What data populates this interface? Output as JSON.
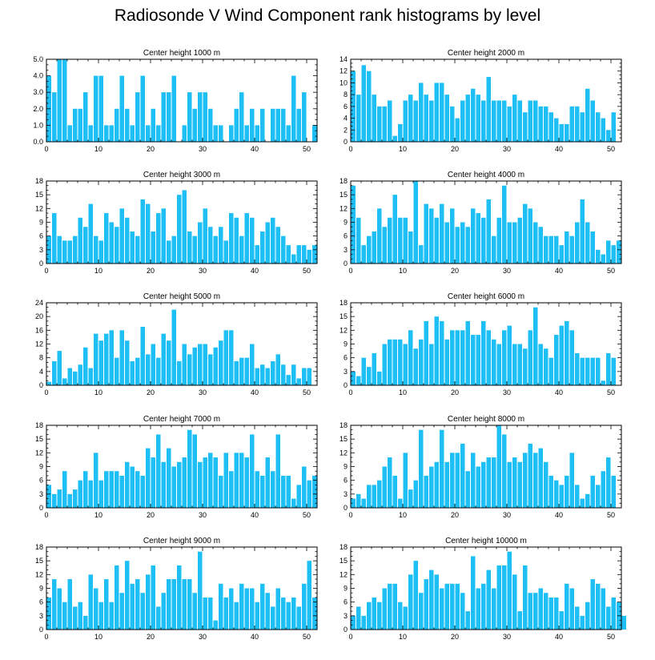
{
  "figure": {
    "title": "Radiosonde V Wind Component rank histograms by level"
  },
  "style": {
    "bar_color": "#1EBFF5",
    "axis_color": "#000000"
  },
  "chart_data": [
    {
      "type": "bar",
      "title": "Center height 1000 m",
      "x_ticks": [
        0,
        10,
        20,
        30,
        40,
        50
      ],
      "xlim": [
        0,
        52
      ],
      "y_ticks": [
        "0.0",
        "1.0",
        "2.0",
        "3.0",
        "4.0",
        "5.0"
      ],
      "ylim": [
        0,
        5
      ],
      "values": [
        4,
        3,
        5,
        5,
        1,
        2,
        2,
        3,
        1,
        4,
        4,
        1,
        1,
        2,
        4,
        2,
        1,
        3,
        4,
        1,
        2,
        1,
        3,
        3,
        4,
        0,
        1,
        3,
        2,
        3,
        3,
        2,
        1,
        1,
        0,
        1,
        2,
        3,
        1,
        2,
        1,
        2,
        0,
        2,
        2,
        2,
        1,
        4,
        2,
        3,
        0,
        1
      ]
    },
    {
      "type": "bar",
      "title": "Center height 2000 m",
      "x_ticks": [
        0,
        10,
        20,
        30,
        40,
        50
      ],
      "xlim": [
        0,
        52
      ],
      "y_ticks": [
        "0",
        "2",
        "4",
        "6",
        "8",
        "10",
        "12",
        "14"
      ],
      "ylim": [
        0,
        14
      ],
      "values": [
        12,
        8,
        13,
        12,
        8,
        6,
        6,
        7,
        1,
        3,
        7,
        8,
        7,
        10,
        8,
        7,
        10,
        10,
        8,
        6,
        4,
        7,
        8,
        9,
        8,
        7,
        11,
        7,
        7,
        7,
        6,
        8,
        7,
        5,
        7,
        7,
        6,
        6,
        5,
        4,
        3,
        3,
        6,
        6,
        5,
        9,
        7,
        5,
        4,
        2,
        5,
        0
      ]
    },
    {
      "type": "bar",
      "title": "Center height 3000 m",
      "x_ticks": [
        0,
        10,
        20,
        30,
        40,
        50
      ],
      "xlim": [
        0,
        52
      ],
      "y_ticks": [
        "0",
        "3",
        "6",
        "9",
        "12",
        "15",
        "18"
      ],
      "ylim": [
        0,
        18
      ],
      "values": [
        6,
        11,
        6,
        5,
        5,
        6,
        10,
        8,
        13,
        6,
        5,
        11,
        9,
        8,
        12,
        10,
        7,
        6,
        14,
        13,
        7,
        11,
        12,
        5,
        6,
        15,
        16,
        7,
        6,
        9,
        12,
        8,
        6,
        8,
        5,
        11,
        10,
        6,
        11,
        10,
        4,
        7,
        9,
        10,
        8,
        6,
        4,
        2,
        4,
        4,
        3,
        4
      ]
    },
    {
      "type": "bar",
      "title": "Center height 4000 m",
      "x_ticks": [
        0,
        10,
        20,
        30,
        40,
        50
      ],
      "xlim": [
        0,
        52
      ],
      "y_ticks": [
        "0",
        "3",
        "6",
        "9",
        "12",
        "15",
        "18"
      ],
      "ylim": [
        0,
        18
      ],
      "values": [
        17,
        10,
        4,
        6,
        7,
        12,
        8,
        10,
        15,
        10,
        10,
        7,
        18,
        4,
        13,
        12,
        10,
        13,
        9,
        12,
        8,
        9,
        8,
        12,
        11,
        10,
        14,
        6,
        10,
        17,
        9,
        9,
        10,
        13,
        12,
        9,
        8,
        6,
        6,
        6,
        4,
        7,
        6,
        9,
        14,
        9,
        7,
        3,
        2,
        5,
        4,
        5
      ]
    },
    {
      "type": "bar",
      "title": "Center height 5000 m",
      "x_ticks": [
        0,
        10,
        20,
        30,
        40,
        50
      ],
      "xlim": [
        0,
        52
      ],
      "y_ticks": [
        "0",
        "4",
        "8",
        "12",
        "16",
        "20",
        "24"
      ],
      "ylim": [
        0,
        24
      ],
      "values": [
        1,
        7,
        10,
        2,
        5,
        4,
        6,
        11,
        5,
        15,
        13,
        15,
        16,
        8,
        16,
        13,
        7,
        8,
        17,
        9,
        12,
        8,
        15,
        13,
        22,
        7,
        12,
        9,
        11,
        12,
        12,
        9,
        11,
        13,
        16,
        16,
        7,
        8,
        8,
        12,
        5,
        6,
        5,
        7,
        9,
        6,
        3,
        6,
        2,
        5,
        5,
        0
      ]
    },
    {
      "type": "bar",
      "title": "Center height 6000 m",
      "x_ticks": [
        0,
        10,
        20,
        30,
        40,
        50
      ],
      "xlim": [
        0,
        52
      ],
      "y_ticks": [
        "0",
        "3",
        "6",
        "9",
        "12",
        "15",
        "18"
      ],
      "ylim": [
        0,
        18
      ],
      "values": [
        3,
        2,
        6,
        4,
        7,
        3,
        9,
        10,
        10,
        10,
        9,
        12,
        8,
        10,
        14,
        9,
        15,
        14,
        10,
        12,
        12,
        12,
        14,
        11,
        11,
        14,
        12,
        10,
        9,
        12,
        13,
        9,
        9,
        8,
        12,
        17,
        9,
        8,
        6,
        11,
        13,
        14,
        12,
        7,
        6,
        6,
        6,
        6,
        1,
        7,
        6,
        0
      ]
    },
    {
      "type": "bar",
      "title": "Center height 7000 m",
      "x_ticks": [
        0,
        10,
        20,
        30,
        40,
        50
      ],
      "xlim": [
        0,
        52
      ],
      "y_ticks": [
        "0",
        "3",
        "6",
        "9",
        "12",
        "15",
        "18"
      ],
      "ylim": [
        0,
        18
      ],
      "values": [
        5,
        3,
        4,
        8,
        3,
        4,
        6,
        8,
        6,
        12,
        6,
        8,
        8,
        8,
        7,
        10,
        9,
        8,
        7,
        13,
        11,
        16,
        10,
        13,
        9,
        10,
        11,
        17,
        16,
        10,
        11,
        12,
        11,
        7,
        12,
        8,
        12,
        12,
        11,
        16,
        8,
        7,
        11,
        8,
        16,
        7,
        7,
        2,
        5,
        9,
        6,
        7
      ]
    },
    {
      "type": "bar",
      "title": "Center height 8000 m",
      "x_ticks": [
        0,
        10,
        20,
        30,
        40,
        50
      ],
      "xlim": [
        0,
        52
      ],
      "y_ticks": [
        "0",
        "3",
        "6",
        "9",
        "12",
        "15",
        "18"
      ],
      "ylim": [
        0,
        18
      ],
      "values": [
        2,
        3,
        2,
        5,
        5,
        6,
        9,
        11,
        7,
        2,
        12,
        4,
        6,
        17,
        7,
        9,
        10,
        17,
        10,
        12,
        12,
        14,
        8,
        12,
        9,
        10,
        11,
        11,
        18,
        16,
        10,
        11,
        10,
        12,
        14,
        12,
        13,
        10,
        7,
        6,
        5,
        7,
        12,
        5,
        2,
        3,
        7,
        5,
        8,
        11,
        7,
        0
      ]
    },
    {
      "type": "bar",
      "title": "Center height 9000 m",
      "x_ticks": [
        0,
        10,
        20,
        30,
        40,
        50
      ],
      "xlim": [
        0,
        52
      ],
      "y_ticks": [
        "0",
        "3",
        "6",
        "9",
        "12",
        "15",
        "18"
      ],
      "ylim": [
        0,
        18
      ],
      "values": [
        7,
        11,
        9,
        6,
        11,
        5,
        6,
        3,
        12,
        9,
        6,
        11,
        6,
        14,
        8,
        15,
        10,
        11,
        8,
        12,
        14,
        5,
        8,
        11,
        11,
        14,
        11,
        11,
        8,
        17,
        7,
        7,
        2,
        10,
        7,
        9,
        6,
        10,
        9,
        9,
        6,
        10,
        8,
        5,
        9,
        7,
        6,
        7,
        5,
        10,
        15,
        7
      ]
    },
    {
      "type": "bar",
      "title": "Center height 10000 m",
      "x_ticks": [
        0,
        10,
        20,
        30,
        40,
        50
      ],
      "xlim": [
        0,
        52
      ],
      "y_ticks": [
        "0",
        "3",
        "6",
        "9",
        "12",
        "15",
        "18"
      ],
      "ylim": [
        0,
        18
      ],
      "values": [
        3,
        5,
        3,
        6,
        7,
        6,
        9,
        10,
        10,
        6,
        5,
        12,
        15,
        8,
        11,
        13,
        12,
        9,
        10,
        10,
        10,
        8,
        4,
        16,
        9,
        10,
        13,
        9,
        14,
        14,
        17,
        12,
        4,
        14,
        8,
        8,
        9,
        8,
        7,
        7,
        4,
        10,
        9,
        5,
        3,
        6,
        11,
        10,
        9,
        5,
        7,
        6,
        3
      ]
    }
  ]
}
